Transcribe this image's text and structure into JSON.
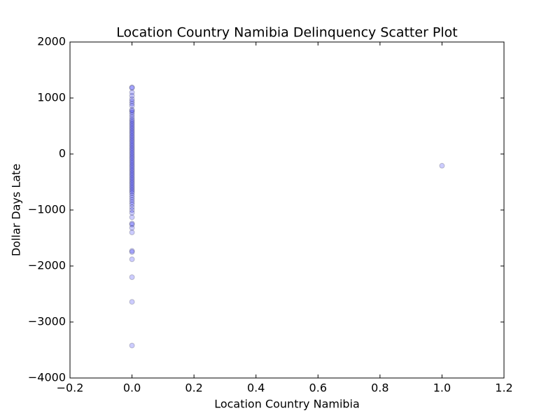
{
  "chart_data": {
    "type": "scatter",
    "title": "Location Country Namibia Delinquency Scatter Plot",
    "x_label": "Location Country Namibia",
    "y_label": "Dollar Days Late",
    "x": [
      0,
      0,
      0,
      0,
      0,
      0,
      0,
      0,
      0,
      0,
      0,
      0,
      0,
      0,
      0,
      0,
      0,
      0,
      0,
      0,
      0,
      0,
      0,
      0,
      0,
      0,
      0,
      0,
      0,
      0,
      0,
      0,
      0,
      0,
      0,
      0,
      0,
      0,
      0,
      0,
      0,
      0,
      0,
      0,
      0,
      0,
      0,
      0,
      0,
      0,
      0,
      0,
      0,
      0,
      0,
      0,
      0,
      0,
      0,
      0,
      0,
      0,
      0,
      0,
      0,
      0,
      0,
      0,
      0,
      0,
      0,
      0,
      0,
      0,
      0,
      0,
      0,
      1
    ],
    "y": [
      1190,
      1180,
      1100,
      1040,
      980,
      940,
      900,
      860,
      790,
      770,
      740,
      700,
      660,
      620,
      590,
      560,
      530,
      500,
      470,
      440,
      410,
      380,
      350,
      320,
      290,
      260,
      230,
      200,
      170,
      140,
      110,
      80,
      50,
      20,
      -10,
      -40,
      -70,
      -100,
      -130,
      -160,
      -190,
      -220,
      -250,
      -280,
      -310,
      -340,
      -370,
      -400,
      -430,
      -460,
      -490,
      -520,
      -550,
      -580,
      -610,
      -640,
      -670,
      -700,
      -740,
      -780,
      -820,
      -860,
      -900,
      -950,
      -1000,
      -1050,
      -1130,
      -1240,
      -1260,
      -1320,
      -1400,
      -1730,
      -1750,
      -1880,
      -2200,
      -2640,
      -3420,
      -210
    ],
    "color": "#0000ff",
    "opacity": 0.2,
    "xlim": [
      -0.2,
      1.2
    ],
    "xticks": [
      {
        "value": -0.2,
        "label": "−0.2"
      },
      {
        "value": 0,
        "label": "0.0"
      },
      0.2,
      0.4,
      0.6,
      0.8,
      {
        "value": 1,
        "label": "1.0"
      },
      1.2
    ],
    "ylim": [
      -4000,
      2000
    ],
    "yticks": [
      {
        "value": -4000,
        "label": "−4000"
      },
      {
        "value": -3000,
        "label": "−3000"
      },
      {
        "value": -2000,
        "label": "−2000"
      },
      {
        "value": -1000,
        "label": "−1000"
      },
      0,
      1000,
      2000
    ]
  }
}
